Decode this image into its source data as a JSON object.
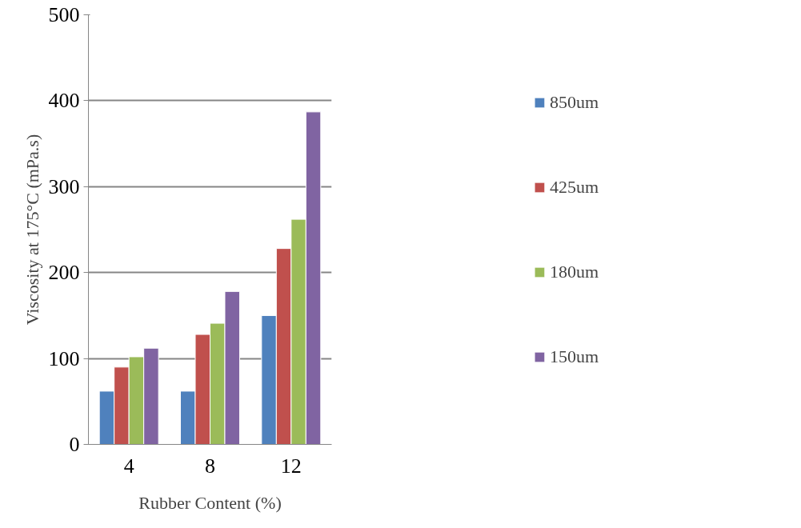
{
  "chart_data": {
    "type": "bar",
    "xlabel": "Rubber Content (%)",
    "ylabel": "Viscosity at 175°C (mPa.s)",
    "categories": [
      "4",
      "8",
      "12"
    ],
    "series": [
      {
        "name": "850um",
        "color": "#4f81bd",
        "values": [
          62,
          62,
          150
        ]
      },
      {
        "name": "425um",
        "color": "#c0504d",
        "values": [
          90,
          128,
          228
        ]
      },
      {
        "name": "180um",
        "color": "#9bbb59",
        "values": [
          102,
          141,
          262
        ]
      },
      {
        "name": "150um",
        "color": "#8064a2",
        "values": [
          112,
          178,
          387
        ]
      }
    ],
    "ylim": [
      0,
      500
    ],
    "yticks": [
      0,
      100,
      200,
      300,
      400,
      500
    ],
    "grid": "y",
    "legend": "right"
  }
}
